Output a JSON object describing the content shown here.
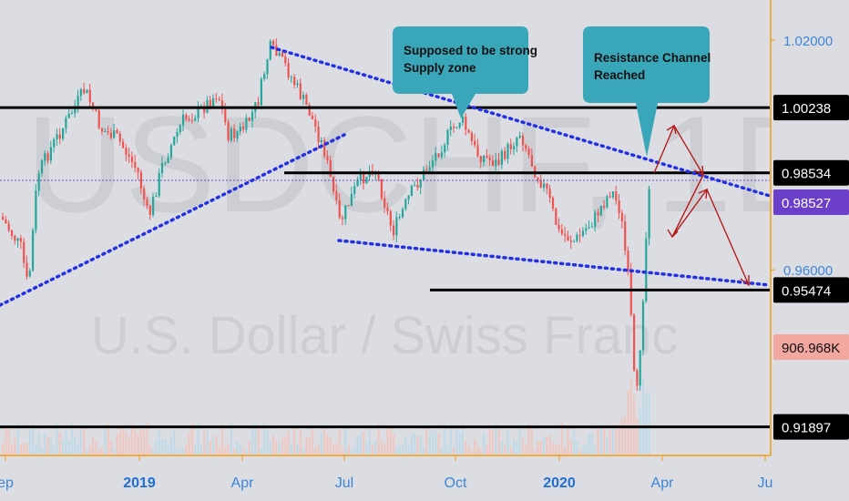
{
  "chart_data": {
    "type": "candlestick",
    "watermark": {
      "symbol": "USDCHF, 1D",
      "name": "U.S. Dollar / Swiss Franc"
    },
    "x_ticks": [
      {
        "label": "ep",
        "bold": false
      },
      {
        "label": "2019",
        "bold": true
      },
      {
        "label": "Apr",
        "bold": false
      },
      {
        "label": "Jul",
        "bold": false
      },
      {
        "label": "Oct",
        "bold": false
      },
      {
        "label": "2020",
        "bold": true
      },
      {
        "label": "Apr",
        "bold": false
      },
      {
        "label": "Ju",
        "bold": false
      }
    ],
    "y_ticks": [
      {
        "value": 1.02,
        "label": "1.02000"
      },
      {
        "value": 0.96,
        "label": "0.96000"
      }
    ],
    "ylim": [
      0.9115,
      1.0305
    ],
    "horizontal_levels": [
      {
        "value": 1.00238,
        "label": "1.00238"
      },
      {
        "value": 0.98534,
        "label": "0.98534"
      },
      {
        "value": 0.95474,
        "label": "0.95474"
      },
      {
        "value": 0.91897,
        "label": "0.91897"
      }
    ],
    "current_price": {
      "value": 0.98527,
      "label": "0.98527",
      "color": "#6b3fc9"
    },
    "volume": {
      "label": "906.968K",
      "color": "#f2a7a0"
    },
    "annotations": [
      {
        "text_lines": [
          "Supposed to be strong",
          "Supply zone"
        ]
      },
      {
        "text_lines": [
          "Resistance Channel",
          "Reached"
        ]
      }
    ],
    "colors": {
      "up": "#26a69a",
      "down": "#ef5350",
      "trendline": "#2431e0",
      "level": "#000000",
      "callout": "#3aa6b9",
      "axis": "#f39c12",
      "projection": "#b71c1c"
    }
  }
}
